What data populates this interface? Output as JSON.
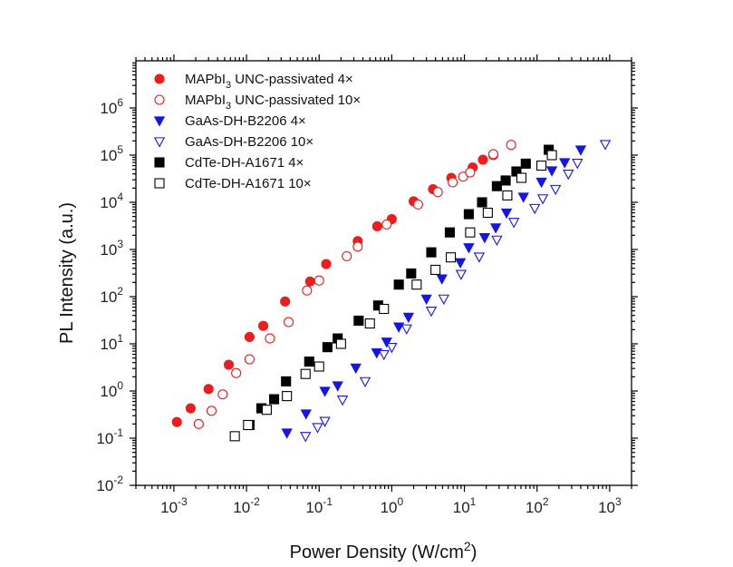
{
  "chart_data": {
    "type": "scatter",
    "title": "",
    "xlabel": {
      "text": "Power Density (W/cm",
      "sup": "2",
      "tail": ")"
    },
    "ylabel": "PL Intensity (a.u.)",
    "x_scale": "log",
    "y_scale": "log",
    "xlim": [
      0.0003,
      2000
    ],
    "ylim": [
      0.01,
      10000000
    ],
    "x_ticks": [
      {
        "base": "10",
        "exp": "-3",
        "value": 0.001
      },
      {
        "base": "10",
        "exp": "-2",
        "value": 0.01
      },
      {
        "base": "10",
        "exp": "-1",
        "value": 0.1
      },
      {
        "base": "10",
        "exp": "0",
        "value": 1
      },
      {
        "base": "10",
        "exp": "1",
        "value": 10
      },
      {
        "base": "10",
        "exp": "2",
        "value": 100
      },
      {
        "base": "10",
        "exp": "3",
        "value": 1000
      }
    ],
    "y_ticks": [
      {
        "base": "10",
        "exp": "-2",
        "value": 0.01
      },
      {
        "base": "10",
        "exp": "-1",
        "value": 0.1
      },
      {
        "base": "10",
        "exp": "0",
        "value": 1
      },
      {
        "base": "10",
        "exp": "1",
        "value": 10
      },
      {
        "base": "10",
        "exp": "2",
        "value": 100
      },
      {
        "base": "10",
        "exp": "3",
        "value": 1000
      },
      {
        "base": "10",
        "exp": "4",
        "value": 10000
      },
      {
        "base": "10",
        "exp": "5",
        "value": 100000
      },
      {
        "base": "10",
        "exp": "6",
        "value": 1000000
      }
    ],
    "grid": false,
    "legend_position": "top-left",
    "series": [
      {
        "name": "MAPbI3 UNC-passivated 4×",
        "legend": {
          "pre": "MAPbI",
          "sub": "3",
          "post": " UNC-passivated 4×"
        },
        "marker": "circle",
        "filled": true,
        "color": "#ee1c1c",
        "x": [
          0.0011,
          0.0017,
          0.003,
          0.0057,
          0.011,
          0.017,
          0.034,
          0.075,
          0.125,
          0.34,
          0.63,
          1.0,
          2.0,
          3.7,
          6.6,
          13,
          18,
          25
        ],
        "y": [
          0.22,
          0.43,
          1.1,
          3.6,
          14,
          24,
          79,
          210,
          490,
          1500,
          3100,
          4400,
          10500,
          19000,
          33000,
          55000,
          80000,
          100000
        ]
      },
      {
        "name": "MAPbI3 UNC-passivated 10×",
        "legend": {
          "pre": "MAPbI",
          "sub": "3",
          "post": " UNC-passivated 10×"
        },
        "marker": "circle",
        "filled": false,
        "color": "#ee1c1c",
        "x": [
          0.0022,
          0.0033,
          0.0047,
          0.0072,
          0.011,
          0.021,
          0.038,
          0.068,
          0.1,
          0.24,
          0.34,
          0.85,
          2.3,
          4.3,
          6.9,
          9.6,
          12,
          25,
          44
        ],
        "y": [
          0.2,
          0.38,
          0.85,
          2.4,
          4.7,
          13,
          29,
          135,
          220,
          720,
          1150,
          3400,
          9000,
          16500,
          26500,
          35000,
          43000,
          105000,
          165000
        ]
      },
      {
        "name": "GaAs-DH-B2206 4×",
        "legend": {
          "pre": "GaAs-DH-B2206 4×",
          "sub": "",
          "post": ""
        },
        "marker": "triangle-down",
        "filled": true,
        "color": "#1515e8",
        "x": [
          0.036,
          0.066,
          0.12,
          0.18,
          0.32,
          0.62,
          0.85,
          1.25,
          1.7,
          3.0,
          4.9,
          8.8,
          11.5,
          19,
          27,
          38,
          65,
          115,
          160,
          240,
          400
        ],
        "y": [
          0.13,
          0.33,
          1.0,
          1.3,
          3.1,
          6.5,
          11,
          23,
          37,
          90,
          240,
          530,
          1100,
          1800,
          2900,
          6000,
          13000,
          27000,
          47000,
          70000,
          130000
        ]
      },
      {
        "name": "GaAs-DH-B2206 10×",
        "legend": {
          "pre": "GaAs-DH-B2206 10×",
          "sub": "",
          "post": ""
        },
        "marker": "triangle-down",
        "filled": false,
        "color": "#1515e8",
        "x": [
          0.065,
          0.095,
          0.12,
          0.21,
          0.43,
          0.78,
          1.0,
          1.6,
          3.5,
          5.2,
          9.0,
          16,
          28,
          48,
          93,
          120,
          180,
          270,
          360,
          870
        ],
        "y": [
          0.11,
          0.17,
          0.23,
          0.65,
          1.6,
          6.0,
          8.5,
          21,
          50,
          90,
          300,
          700,
          1600,
          3800,
          7500,
          12000,
          19000,
          40000,
          68000,
          170000
        ]
      },
      {
        "name": "CdTe-DH-A1671 4×",
        "legend": {
          "pre": "CdTe-DH-A1671 4×",
          "sub": "",
          "post": ""
        },
        "marker": "square",
        "filled": true,
        "color": "#000000",
        "x": [
          0.011,
          0.016,
          0.024,
          0.035,
          0.073,
          0.13,
          0.18,
          0.35,
          0.65,
          1.25,
          1.85,
          3.5,
          6.3,
          11.5,
          17.5,
          28,
          37,
          52,
          70,
          145
        ],
        "y": [
          0.19,
          0.43,
          0.67,
          1.6,
          4.2,
          8.5,
          13,
          31,
          65,
          180,
          310,
          870,
          2300,
          5600,
          10000,
          22000,
          29000,
          45000,
          66000,
          130000
        ]
      },
      {
        "name": "CdTe-DH-A1671 10×",
        "legend": {
          "pre": "CdTe-DH-A1671 10×",
          "sub": "",
          "post": ""
        },
        "marker": "square",
        "filled": false,
        "color": "#000000",
        "x": [
          0.0069,
          0.0105,
          0.019,
          0.036,
          0.065,
          0.1,
          0.2,
          0.5,
          0.78,
          2.2,
          4.0,
          6.5,
          12,
          21,
          39,
          61,
          115,
          160
        ],
        "y": [
          0.11,
          0.19,
          0.4,
          0.78,
          2.3,
          3.3,
          10,
          27,
          55,
          180,
          370,
          680,
          2300,
          6000,
          14000,
          33000,
          60000,
          100000
        ]
      }
    ]
  }
}
